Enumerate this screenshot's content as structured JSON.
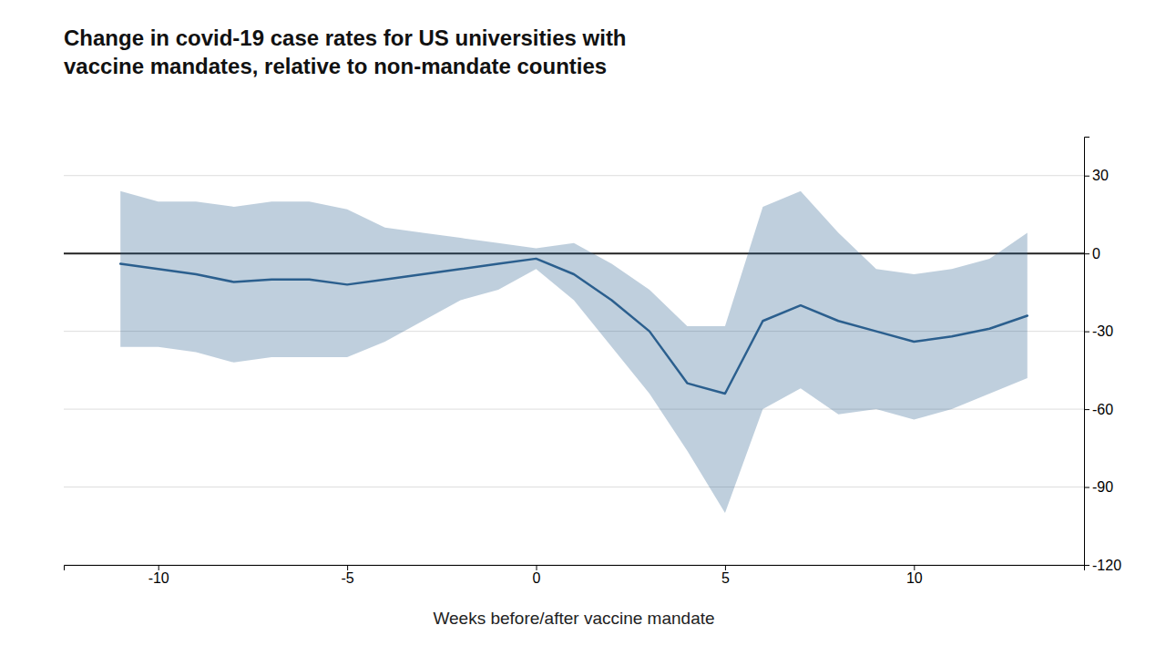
{
  "chart_data": {
    "type": "line",
    "title": "Change in covid-19 case rates for US universities with\nvaccine mandates, relative to non-mandate counties",
    "x_label": "Weeks before/after vaccine mandate",
    "x": [
      -11,
      -10,
      -9,
      -8,
      -7,
      -6,
      -5,
      -4,
      -3,
      -2,
      -1,
      0,
      1,
      2,
      3,
      4,
      5,
      6,
      7,
      8,
      9,
      10,
      11,
      12,
      13
    ],
    "series": [
      {
        "color": "#2b5f8e",
        "values": [
          -4,
          -6,
          -8,
          -11,
          -10,
          -10,
          -12,
          -10,
          -8,
          -6,
          -4,
          -2,
          -8,
          -18,
          -30,
          -50,
          -54,
          -26,
          -20,
          -26,
          -30,
          -34,
          -32,
          -29,
          -24
        ],
        "upper": [
          24,
          20,
          20,
          18,
          20,
          20,
          17,
          10,
          8,
          6,
          4,
          2,
          4,
          -4,
          -14,
          -28,
          -28,
          18,
          24,
          8,
          -6,
          -8,
          -6,
          -2,
          8
        ],
        "lower": [
          -36,
          -36,
          -38,
          -42,
          -40,
          -40,
          -40,
          -34,
          -26,
          -18,
          -14,
          -6,
          -18,
          -36,
          -54,
          -76,
          -100,
          -60,
          -52,
          -62,
          -60,
          -64,
          -60,
          -54,
          -48
        ]
      }
    ],
    "xlim": [
      -12.5,
      14.5
    ],
    "ylim": [
      -120,
      45
    ],
    "xticks": [
      -10,
      -5,
      0,
      5,
      10
    ],
    "yticks": [
      30,
      0,
      -30,
      -60,
      -90,
      -120
    ],
    "grid": true
  }
}
